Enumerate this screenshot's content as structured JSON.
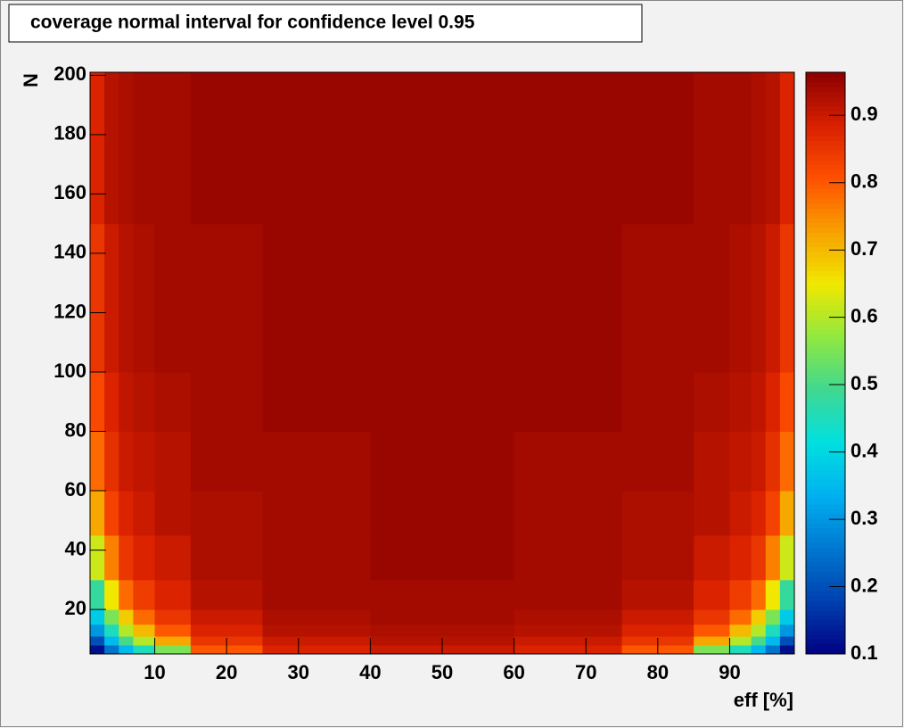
{
  "chart_data": {
    "type": "heatmap",
    "title": "coverage normal interval for confidence level 0.95",
    "x_label": "eff [%]",
    "y_label": "N",
    "xbins": [
      1,
      3,
      5,
      7,
      10,
      15,
      25,
      40,
      60,
      75,
      85,
      90,
      93,
      95,
      97,
      99
    ],
    "ybins": [
      5,
      8,
      11,
      15,
      20,
      30,
      45,
      60,
      80,
      100,
      150,
      201
    ],
    "z": [
      [
        0.12,
        0.25,
        0.35,
        0.45,
        0.55,
        0.8,
        0.88,
        0.9,
        0.88,
        0.8,
        0.55,
        0.45,
        0.35,
        0.25,
        0.12
      ],
      [
        0.2,
        0.35,
        0.5,
        0.6,
        0.72,
        0.85,
        0.9,
        0.92,
        0.9,
        0.85,
        0.72,
        0.6,
        0.5,
        0.35,
        0.2
      ],
      [
        0.3,
        0.45,
        0.6,
        0.7,
        0.8,
        0.88,
        0.92,
        0.93,
        0.92,
        0.88,
        0.8,
        0.7,
        0.6,
        0.45,
        0.3
      ],
      [
        0.38,
        0.55,
        0.68,
        0.78,
        0.85,
        0.9,
        0.93,
        0.94,
        0.93,
        0.9,
        0.85,
        0.78,
        0.68,
        0.55,
        0.38
      ],
      [
        0.48,
        0.65,
        0.78,
        0.84,
        0.88,
        0.92,
        0.94,
        0.94,
        0.94,
        0.92,
        0.88,
        0.84,
        0.78,
        0.65,
        0.48
      ],
      [
        0.62,
        0.76,
        0.85,
        0.88,
        0.9,
        0.93,
        0.94,
        0.95,
        0.94,
        0.93,
        0.9,
        0.88,
        0.85,
        0.76,
        0.62
      ],
      [
        0.72,
        0.83,
        0.88,
        0.9,
        0.92,
        0.93,
        0.94,
        0.95,
        0.94,
        0.93,
        0.92,
        0.9,
        0.88,
        0.83,
        0.72
      ],
      [
        0.78,
        0.86,
        0.9,
        0.91,
        0.92,
        0.94,
        0.94,
        0.95,
        0.94,
        0.94,
        0.92,
        0.91,
        0.9,
        0.86,
        0.78
      ],
      [
        0.82,
        0.88,
        0.91,
        0.92,
        0.93,
        0.94,
        0.95,
        0.95,
        0.95,
        0.94,
        0.93,
        0.92,
        0.91,
        0.88,
        0.82
      ],
      [
        0.85,
        0.9,
        0.92,
        0.93,
        0.94,
        0.94,
        0.95,
        0.95,
        0.95,
        0.94,
        0.94,
        0.93,
        0.92,
        0.9,
        0.85
      ],
      [
        0.88,
        0.92,
        0.93,
        0.94,
        0.94,
        0.95,
        0.95,
        0.95,
        0.95,
        0.95,
        0.94,
        0.94,
        0.93,
        0.92,
        0.88
      ]
    ],
    "xlim": [
      1,
      99
    ],
    "ylim": [
      5,
      201
    ],
    "zlim": [
      0.1,
      0.964
    ],
    "xticks": [
      10,
      20,
      30,
      40,
      50,
      60,
      70,
      80,
      90
    ],
    "yticks": [
      20,
      40,
      60,
      80,
      100,
      120,
      140,
      160,
      180,
      200
    ],
    "zticks": [
      0.1,
      0.2,
      0.3,
      0.4,
      0.5,
      0.6,
      0.7,
      0.8,
      0.9
    ],
    "colorscale": [
      "#000080",
      "#0040b0",
      "#0078d0",
      "#00b0f0",
      "#00e0e0",
      "#40d890",
      "#90e840",
      "#f0e800",
      "#f8a000",
      "#ff5000",
      "#d82000",
      "#8b0000"
    ]
  }
}
